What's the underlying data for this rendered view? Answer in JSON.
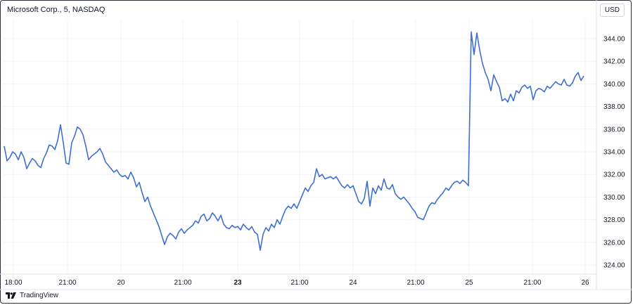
{
  "header": {
    "title": "Microsoft Corp., 5, NASDAQ",
    "currency": "USD"
  },
  "footer": {
    "brand": "TradingView"
  },
  "colors": {
    "line": "#3d6fd0",
    "grid": "#f0f3fa",
    "text": "#131722"
  },
  "chart_data": {
    "type": "line",
    "title": "",
    "xlabel": "",
    "ylabel": "",
    "ylim": [
      323,
      346
    ],
    "grid": true,
    "y_ticks": [
      "324.00",
      "326.00",
      "328.00",
      "330.00",
      "332.00",
      "334.00",
      "336.00",
      "338.00",
      "340.00",
      "342.00",
      "344.00"
    ],
    "x_ticks": [
      {
        "label": "18:00",
        "bold": false
      },
      {
        "label": "21:00",
        "bold": false
      },
      {
        "label": "20",
        "bold": false
      },
      {
        "label": "21:00",
        "bold": false
      },
      {
        "label": "23",
        "bold": true
      },
      {
        "label": "21:00",
        "bold": false
      },
      {
        "label": "24",
        "bold": false
      },
      {
        "label": "21:00",
        "bold": false
      },
      {
        "label": "25",
        "bold": false
      },
      {
        "label": "21:00",
        "bold": false
      },
      {
        "label": "26",
        "bold": false
      }
    ],
    "series": [
      {
        "values": [
          334.5,
          333.2,
          333.5,
          334.0,
          333.8,
          333.3,
          334.0,
          333.5,
          332.5,
          333.0,
          333.4,
          333.2,
          332.8,
          332.6,
          333.4,
          333.9,
          334.6,
          334.5,
          334.2,
          335.0,
          336.4,
          334.8,
          333.0,
          332.9,
          334.8,
          335.4,
          336.2,
          336.0,
          335.5,
          334.5,
          333.3,
          333.6,
          333.8,
          334.0,
          334.3,
          333.8,
          333.1,
          332.8,
          332.5,
          332.2,
          332.4,
          332.0,
          331.8,
          331.9,
          331.6,
          332.2,
          331.7,
          330.9,
          331.3,
          330.4,
          329.6,
          330.0,
          329.2,
          328.6,
          328.0,
          327.4,
          326.6,
          325.8,
          326.5,
          326.8,
          326.6,
          326.3,
          326.9,
          327.2,
          326.8,
          327.1,
          327.3,
          327.5,
          327.9,
          327.7,
          328.3,
          328.5,
          327.9,
          328.1,
          328.6,
          328.3,
          327.9,
          328.4,
          327.6,
          327.3,
          327.2,
          327.5,
          327.3,
          327.4,
          327.1,
          327.6,
          327.3,
          327.1,
          327.4,
          326.9,
          326.7,
          325.3,
          326.7,
          327.3,
          327.0,
          327.6,
          327.3,
          328.0,
          327.6,
          328.3,
          328.9,
          329.2,
          329.0,
          329.4,
          329.0,
          329.6,
          330.2,
          330.8,
          330.5,
          331.0,
          331.3,
          332.5,
          331.8,
          332.0,
          331.6,
          331.7,
          331.8,
          331.6,
          331.8,
          331.4,
          331.0,
          330.8,
          331.1,
          330.8,
          331.0,
          330.3,
          329.6,
          329.4,
          329.9,
          331.4,
          329.2,
          330.8,
          330.3,
          331.0,
          330.6,
          331.6,
          330.8,
          330.7,
          331.1,
          330.3,
          330.0,
          329.8,
          330.0,
          329.7,
          329.4,
          329.0,
          328.7,
          328.2,
          328.1,
          328.0,
          328.6,
          329.2,
          329.5,
          329.4,
          329.8,
          330.1,
          330.4,
          330.8,
          330.6,
          331.0,
          331.3,
          331.4,
          331.2,
          331.5,
          331.3,
          331.0,
          344.6,
          342.6,
          344.5,
          343.0,
          341.8,
          341.0,
          340.4,
          339.4,
          340.8,
          340.2,
          339.7,
          338.5,
          338.7,
          338.4,
          339.1,
          338.5,
          339.4,
          339.2,
          339.7,
          339.9,
          339.6,
          339.8,
          338.6,
          339.4,
          339.6,
          339.5,
          339.3,
          339.8,
          339.6,
          339.9,
          340.2,
          340.0,
          339.9,
          340.4,
          339.9,
          339.8,
          340.1,
          340.7,
          341.0,
          340.3,
          340.7
        ]
      }
    ]
  }
}
